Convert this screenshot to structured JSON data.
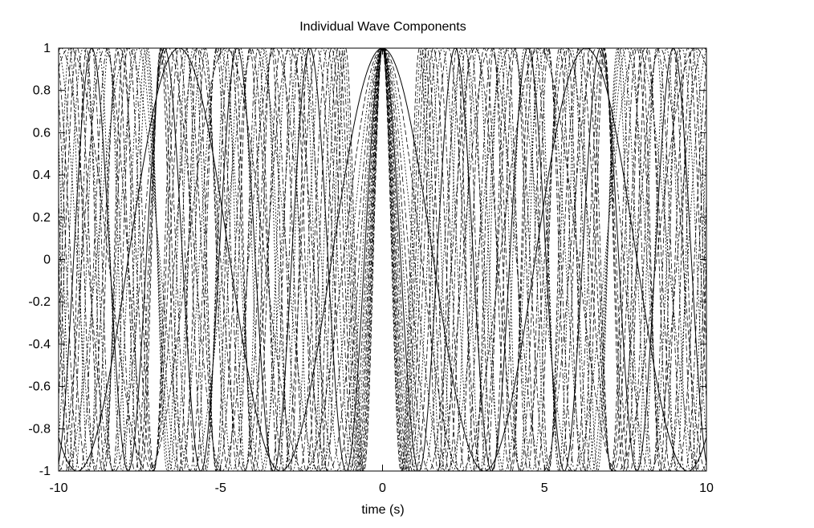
{
  "chart_data": {
    "type": "line",
    "title": "Individual Wave Components",
    "xlabel": "time (s)",
    "ylabel": "",
    "xlim": [
      -10,
      10
    ],
    "ylim": [
      -1,
      1
    ],
    "xticks": [
      -10,
      -5,
      0,
      5,
      10
    ],
    "xtick_labels": [
      "-10",
      "-5",
      "0",
      "5",
      "10"
    ],
    "yticks": [
      -1,
      -0.8,
      -0.6,
      -0.4,
      -0.2,
      0,
      0.2,
      0.4,
      0.6,
      0.8,
      1
    ],
    "ytick_labels": [
      "-1",
      "-0.8",
      "-0.6",
      "-0.4",
      "-0.2",
      "0",
      "0.2",
      "0.4",
      "0.6",
      "0.8",
      "1"
    ],
    "grid": false,
    "legend": false,
    "line_color": "#000000",
    "series": [
      {
        "function": "cos(w*t)",
        "angular_frequency": 1.0,
        "style": "solid"
      },
      {
        "function": "cos(w*t)",
        "angular_frequency": 1.3,
        "style": "dashed"
      },
      {
        "function": "cos(w*t)",
        "angular_frequency": 1.6,
        "style": "dotted"
      },
      {
        "function": "cos(w*t)",
        "angular_frequency": 1.9,
        "style": "dashdot"
      },
      {
        "function": "cos(w*t)",
        "angular_frequency": 2.2,
        "style": "dashed"
      },
      {
        "function": "cos(w*t)",
        "angular_frequency": 2.5,
        "style": "dotted"
      },
      {
        "function": "cos(w*t)",
        "angular_frequency": 2.8,
        "style": "solid"
      },
      {
        "function": "cos(w*t)",
        "angular_frequency": 3.1,
        "style": "dashed"
      },
      {
        "function": "cos(w*t)",
        "angular_frequency": 3.4,
        "style": "dotted"
      },
      {
        "function": "cos(w*t)",
        "angular_frequency": 3.7,
        "style": "dashdot"
      },
      {
        "function": "cos(w*t)",
        "angular_frequency": 4.0,
        "style": "dashed"
      },
      {
        "function": "cos(w*t)",
        "angular_frequency": 4.3,
        "style": "dotted"
      },
      {
        "function": "cos(w*t)",
        "angular_frequency": 4.6,
        "style": "dashed"
      },
      {
        "function": "cos(w*t)",
        "angular_frequency": 4.9,
        "style": "dashdot"
      },
      {
        "function": "cos(w*t)",
        "angular_frequency": 5.2,
        "style": "dotted"
      },
      {
        "function": "cos(w*t)",
        "angular_frequency": 5.5,
        "style": "dashed"
      }
    ]
  }
}
